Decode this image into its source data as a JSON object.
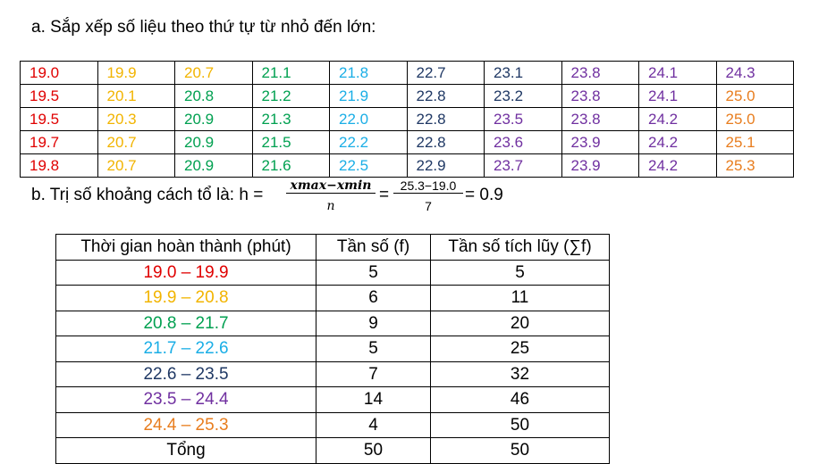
{
  "section_a": {
    "heading": "a.  Sắp xếp số liệu theo thứ tự từ nhỏ đến lớn:",
    "table": {
      "rows": [
        [
          "19.0",
          "19.9",
          "20.7",
          "21.1",
          "21.8",
          "22.7",
          "23.1",
          "23.8",
          "24.1",
          "24.3"
        ],
        [
          "19.5",
          "20.1",
          "20.8",
          "21.2",
          "21.9",
          "22.8",
          "23.2",
          "23.8",
          "24.1",
          "25.0"
        ],
        [
          "19.5",
          "20.3",
          "20.9",
          "21.3",
          "22.0",
          "22.8",
          "23.5",
          "23.8",
          "24.2",
          "25.0"
        ],
        [
          "19.7",
          "20.7",
          "20.9",
          "21.5",
          "22.2",
          "22.8",
          "23.6",
          "23.9",
          "24.2",
          "25.1"
        ],
        [
          "19.8",
          "20.7",
          "20.9",
          "21.6",
          "22.5",
          "22.9",
          "23.7",
          "23.9",
          "24.2",
          "25.3"
        ]
      ],
      "colors": [
        [
          "#e00000",
          "#f2b400",
          "#f2b400",
          "#00a050",
          "#1aaee6",
          "#1f3864",
          "#1f3864",
          "#7030a0",
          "#7030a0",
          "#7030a0"
        ],
        [
          "#e00000",
          "#f2b400",
          "#00a050",
          "#00a050",
          "#1aaee6",
          "#1f3864",
          "#1f3864",
          "#7030a0",
          "#7030a0",
          "#e87d1e"
        ],
        [
          "#e00000",
          "#f2b400",
          "#00a050",
          "#00a050",
          "#1aaee6",
          "#1f3864",
          "#7030a0",
          "#7030a0",
          "#7030a0",
          "#e87d1e"
        ],
        [
          "#e00000",
          "#f2b400",
          "#00a050",
          "#00a050",
          "#1aaee6",
          "#1f3864",
          "#7030a0",
          "#7030a0",
          "#7030a0",
          "#e87d1e"
        ],
        [
          "#e00000",
          "#f2b400",
          "#00a050",
          "#00a050",
          "#1aaee6",
          "#1f3864",
          "#7030a0",
          "#7030a0",
          "#7030a0",
          "#e87d1e"
        ]
      ]
    }
  },
  "section_b": {
    "prefix": "b.  Trị số khoảng cách tổ là: h =",
    "frac1_num": "xmax−xmin",
    "frac1_den": "n",
    "eq1": "=",
    "frac2_num": "25.3−19.0",
    "frac2_den": "7",
    "result": "= 0.9",
    "table": {
      "header": [
        "Thời gian hoàn thành (phút)",
        "Tần số (f)",
        "Tần số tích lũy (∑f)"
      ],
      "rows": [
        [
          "19.0 – 19.9",
          "5",
          "5"
        ],
        [
          "19.9 – 20.8",
          "6",
          "11"
        ],
        [
          "20.8 – 21.7",
          "9",
          "20"
        ],
        [
          "21.7 – 22.6",
          "5",
          "25"
        ],
        [
          "22.6 – 23.5",
          "7",
          "32"
        ],
        [
          "23.5 – 24.4",
          "14",
          "46"
        ],
        [
          "24.4 – 25.3",
          "4",
          "50"
        ],
        [
          "Tổng",
          "50",
          "50"
        ]
      ],
      "colors": [
        "#e00000",
        "#f2b400",
        "#00a050",
        "#1aaee6",
        "#1f3864",
        "#7030a0",
        "#e87d1e",
        "#000000"
      ]
    }
  }
}
